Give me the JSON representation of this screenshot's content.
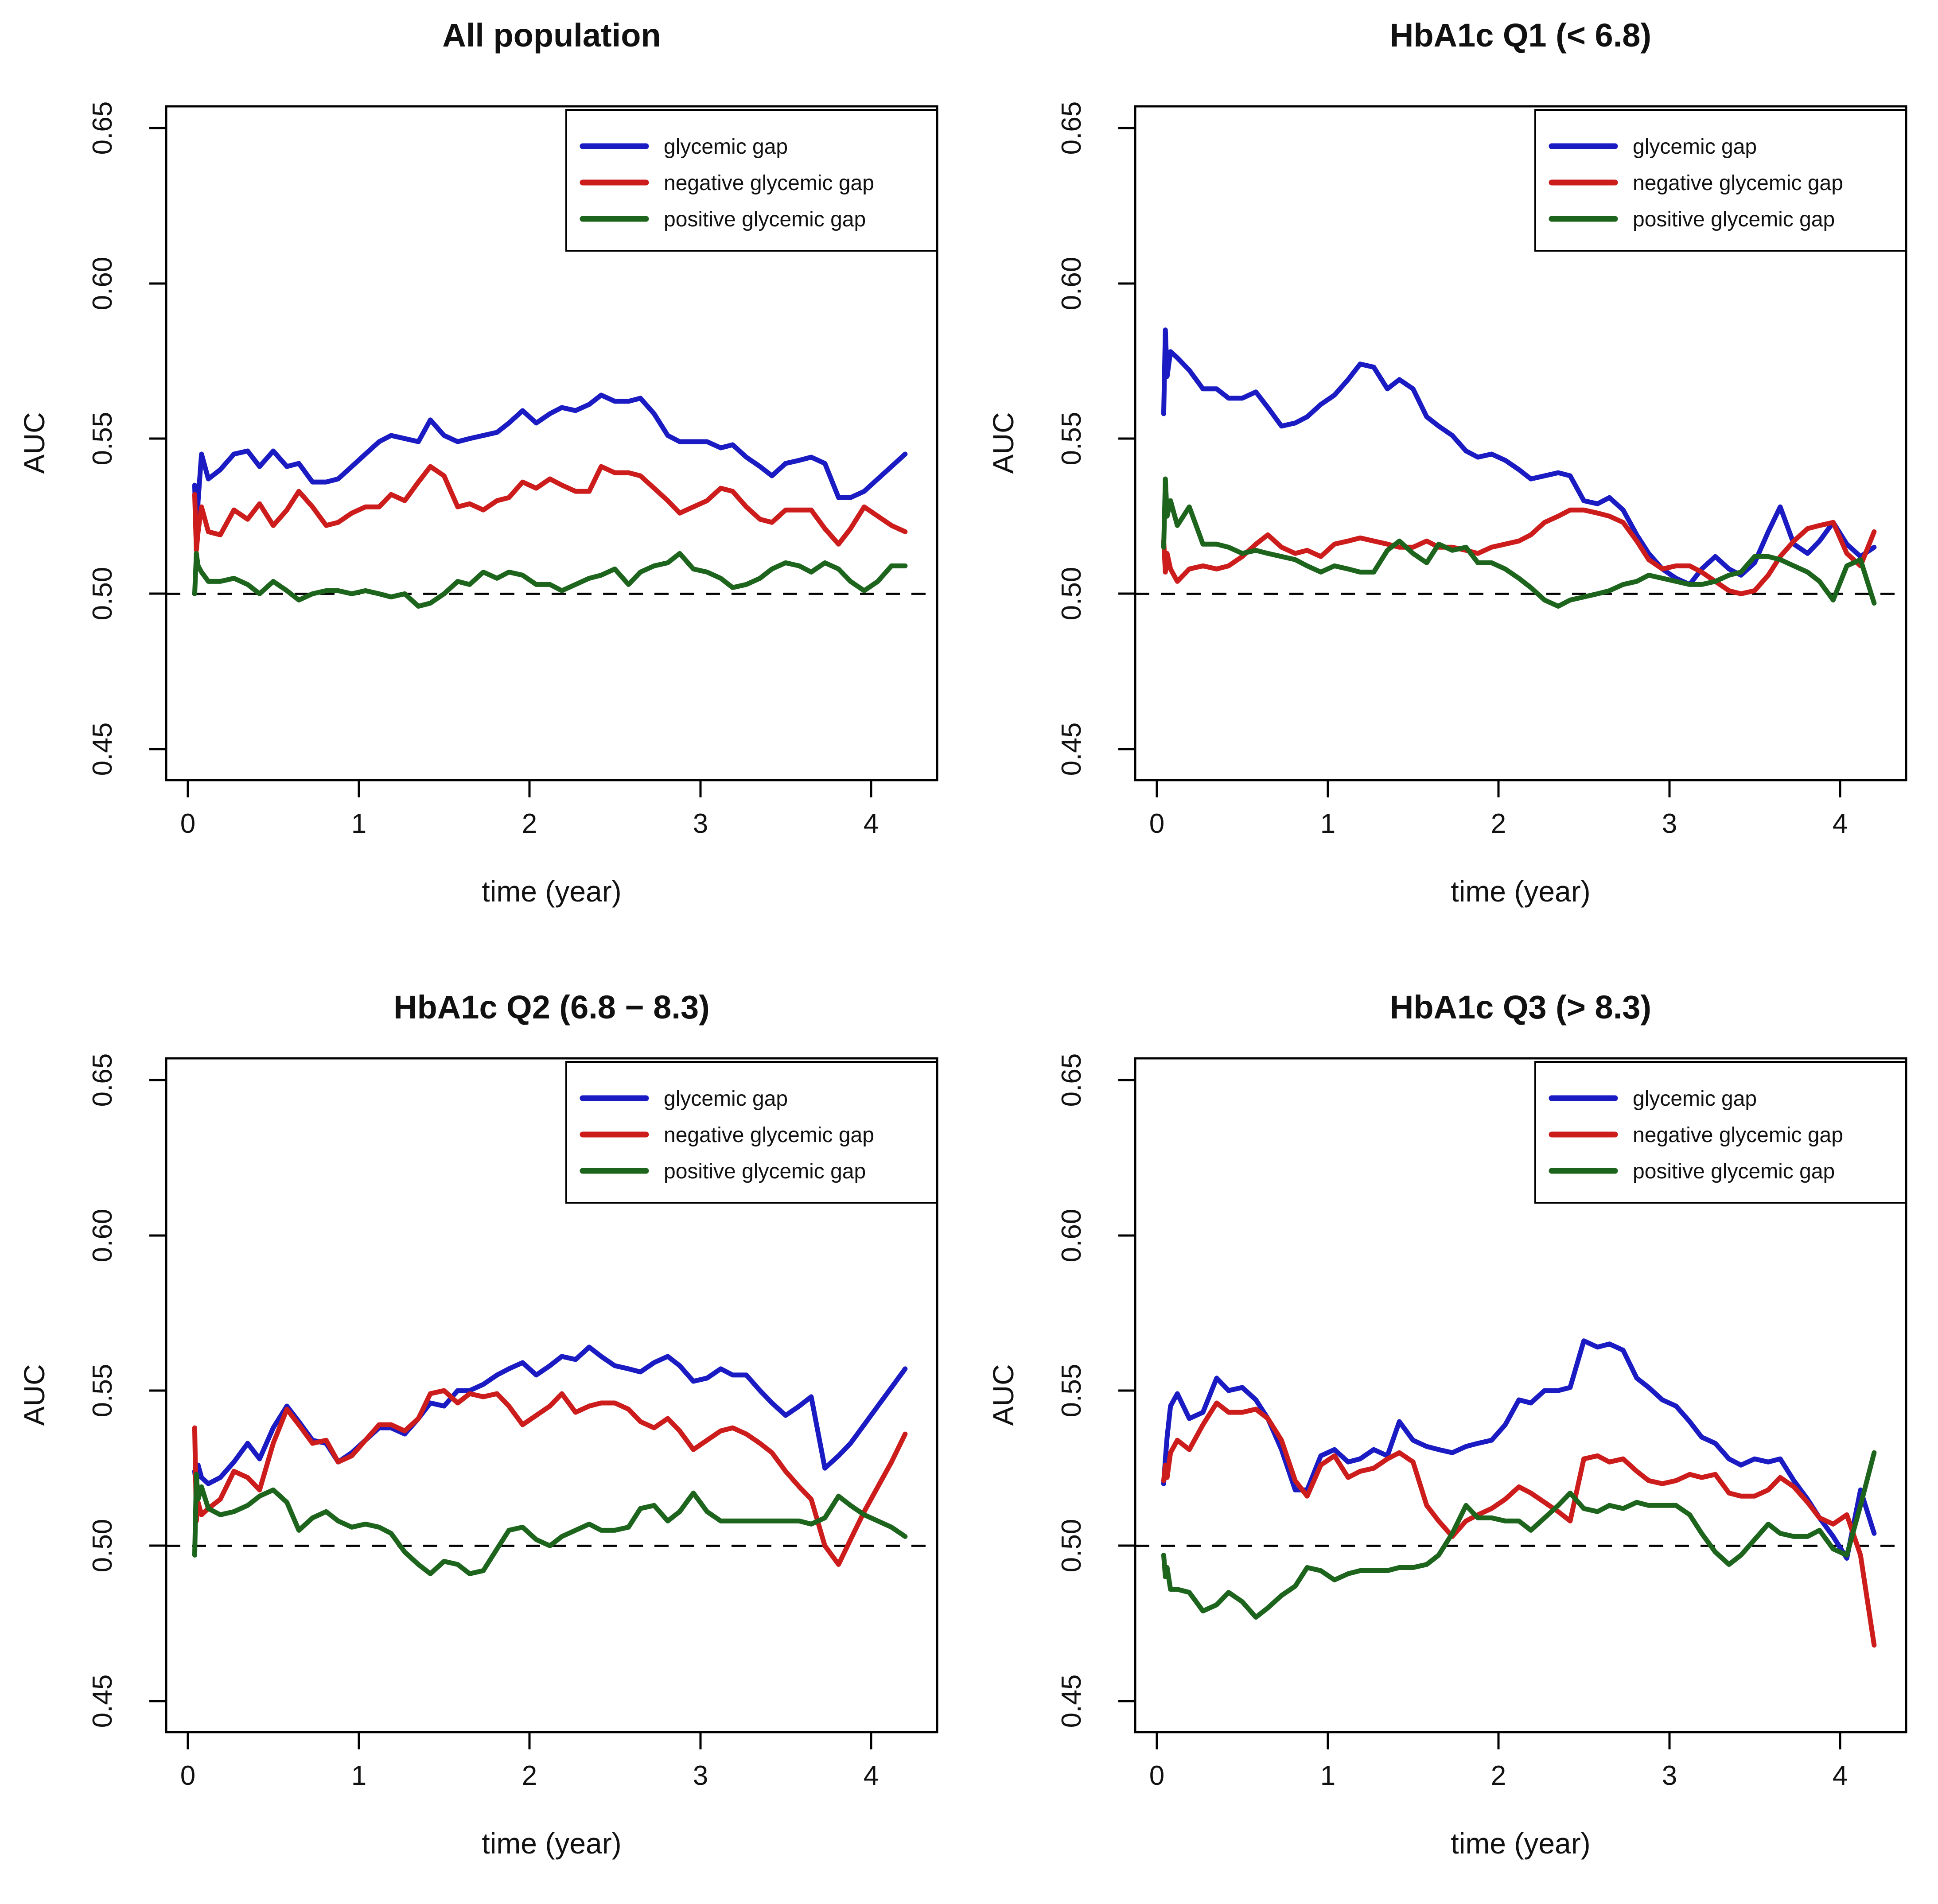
{
  "figure": {
    "background": "#ffffff",
    "text_color": "#111111",
    "accent_colors": {
      "blue": "#1b1bc3",
      "red": "#cd1c1c",
      "green": "#1d641d"
    }
  },
  "chart_data": {
    "type": "line",
    "layout": "2x2 grid of panels, shared axis style",
    "xlabel": "time (year)",
    "ylabel": "AUC",
    "xlim": [
      -0.127,
      4.387
    ],
    "ylim": [
      0.44,
      0.657
    ],
    "grid": "off",
    "reference_line": 0.5,
    "reference_line_style": "dashed black",
    "x_ticks": [
      {
        "label": "0",
        "value": 0
      },
      {
        "label": "1",
        "value": 1
      },
      {
        "label": "2",
        "value": 2
      },
      {
        "label": "3",
        "value": 3
      },
      {
        "label": "4",
        "value": 4
      }
    ],
    "y_ticks": [
      {
        "label": "0.45",
        "value": 0.45
      },
      {
        "label": "0.50",
        "value": 0.5
      },
      {
        "label": "0.55",
        "value": 0.55
      },
      {
        "label": "0.60",
        "value": 0.6
      },
      {
        "label": "0.65",
        "value": 0.65
      }
    ],
    "legend": {
      "position": "top-right",
      "entries": [
        {
          "label": "glycemic gap",
          "color": "#1b1bc3"
        },
        {
          "label": "negative glycemic gap",
          "color": "#cd1c1c"
        },
        {
          "label": "positive glycemic gap",
          "color": "#1d641d"
        }
      ]
    },
    "x_grid": [
      0.04,
      0.05,
      0.06,
      0.08,
      0.12,
      0.19,
      0.27,
      0.35,
      0.42,
      0.5,
      0.58,
      0.65,
      0.73,
      0.81,
      0.88,
      0.96,
      1.04,
      1.12,
      1.19,
      1.27,
      1.35,
      1.42,
      1.5,
      1.58,
      1.65,
      1.73,
      1.81,
      1.88,
      1.96,
      2.04,
      2.12,
      2.19,
      2.27,
      2.35,
      2.42,
      2.5,
      2.58,
      2.65,
      2.73,
      2.81,
      2.88,
      2.96,
      3.04,
      3.12,
      3.19,
      3.27,
      3.35,
      3.42,
      3.5,
      3.58,
      3.65,
      3.73,
      3.81,
      3.88,
      3.96,
      4.04,
      4.12,
      4.2
    ],
    "panels": [
      {
        "title": "All population",
        "series": [
          {
            "name": "glycemic gap",
            "color": "#1b1bc3",
            "values": [
              0.535,
              0.515,
              0.53,
              0.545,
              0.537,
              0.54,
              0.545,
              0.546,
              0.541,
              0.546,
              0.541,
              0.542,
              0.536,
              0.536,
              0.537,
              0.541,
              0.545,
              0.549,
              0.551,
              0.55,
              0.549,
              0.556,
              0.551,
              0.549,
              0.55,
              0.551,
              0.552,
              0.555,
              0.559,
              0.555,
              0.558,
              0.56,
              0.559,
              0.561,
              0.564,
              0.562,
              0.562,
              0.563,
              0.558,
              0.551,
              0.549,
              0.549,
              0.549,
              0.547,
              0.548,
              0.544,
              0.541,
              0.538,
              0.542,
              0.543,
              0.544,
              0.542,
              0.531,
              0.531,
              0.533,
              0.537,
              0.541,
              0.545
            ]
          },
          {
            "name": "negative glycemic gap",
            "color": "#cd1c1c",
            "values": [
              0.532,
              0.514,
              0.52,
              0.528,
              0.52,
              0.519,
              0.527,
              0.524,
              0.529,
              0.522,
              0.527,
              0.533,
              0.528,
              0.522,
              0.523,
              0.526,
              0.528,
              0.528,
              0.532,
              0.53,
              0.536,
              0.541,
              0.538,
              0.528,
              0.529,
              0.527,
              0.53,
              0.531,
              0.536,
              0.534,
              0.537,
              0.535,
              0.533,
              0.533,
              0.541,
              0.539,
              0.539,
              0.538,
              0.534,
              0.53,
              0.526,
              0.528,
              0.53,
              0.534,
              0.533,
              0.528,
              0.524,
              0.523,
              0.527,
              0.527,
              0.527,
              0.521,
              0.516,
              0.521,
              0.528,
              0.525,
              0.522,
              0.52
            ]
          },
          {
            "name": "positive glycemic gap",
            "color": "#1d641d",
            "values": [
              0.5,
              0.513,
              0.509,
              0.507,
              0.504,
              0.504,
              0.505,
              0.503,
              0.5,
              0.504,
              0.501,
              0.498,
              0.5,
              0.501,
              0.501,
              0.5,
              0.501,
              0.5,
              0.499,
              0.5,
              0.496,
              0.497,
              0.5,
              0.504,
              0.503,
              0.507,
              0.505,
              0.507,
              0.506,
              0.503,
              0.503,
              0.501,
              0.503,
              0.505,
              0.506,
              0.508,
              0.503,
              0.507,
              0.509,
              0.51,
              0.513,
              0.508,
              0.507,
              0.505,
              0.502,
              0.503,
              0.505,
              0.508,
              0.51,
              0.509,
              0.507,
              0.51,
              0.508,
              0.504,
              0.501,
              0.504,
              0.509,
              0.509
            ]
          }
        ]
      },
      {
        "title": "HbA1c Q1 (< 6.8)",
        "series": [
          {
            "name": "glycemic gap",
            "color": "#1b1bc3",
            "values": [
              0.558,
              0.585,
              0.57,
              0.578,
              0.576,
              0.572,
              0.566,
              0.566,
              0.563,
              0.563,
              0.565,
              0.56,
              0.554,
              0.555,
              0.557,
              0.561,
              0.564,
              0.569,
              0.574,
              0.573,
              0.566,
              0.569,
              0.566,
              0.557,
              0.554,
              0.551,
              0.546,
              0.544,
              0.545,
              0.543,
              0.54,
              0.537,
              0.538,
              0.539,
              0.538,
              0.53,
              0.529,
              0.531,
              0.527,
              0.519,
              0.513,
              0.508,
              0.505,
              0.503,
              0.508,
              0.512,
              0.508,
              0.506,
              0.51,
              0.52,
              0.528,
              0.516,
              0.513,
              0.517,
              0.523,
              0.516,
              0.512,
              0.515
            ]
          },
          {
            "name": "negative glycemic gap",
            "color": "#cd1c1c",
            "values": [
              0.517,
              0.507,
              0.513,
              0.508,
              0.504,
              0.508,
              0.509,
              0.508,
              0.509,
              0.512,
              0.516,
              0.519,
              0.515,
              0.513,
              0.514,
              0.512,
              0.516,
              0.517,
              0.518,
              0.517,
              0.516,
              0.515,
              0.515,
              0.517,
              0.515,
              0.515,
              0.514,
              0.513,
              0.515,
              0.516,
              0.517,
              0.519,
              0.523,
              0.525,
              0.527,
              0.527,
              0.526,
              0.525,
              0.523,
              0.517,
              0.511,
              0.508,
              0.509,
              0.509,
              0.507,
              0.504,
              0.501,
              0.5,
              0.501,
              0.506,
              0.512,
              0.517,
              0.521,
              0.522,
              0.523,
              0.513,
              0.509,
              0.52
            ]
          },
          {
            "name": "positive glycemic gap",
            "color": "#1d641d",
            "values": [
              0.515,
              0.537,
              0.525,
              0.53,
              0.522,
              0.528,
              0.516,
              0.516,
              0.515,
              0.513,
              0.514,
              0.513,
              0.512,
              0.511,
              0.509,
              0.507,
              0.509,
              0.508,
              0.507,
              0.507,
              0.514,
              0.517,
              0.513,
              0.51,
              0.516,
              0.514,
              0.515,
              0.51,
              0.51,
              0.508,
              0.505,
              0.502,
              0.498,
              0.496,
              0.498,
              0.499,
              0.5,
              0.501,
              0.503,
              0.504,
              0.506,
              0.505,
              0.504,
              0.503,
              0.503,
              0.504,
              0.506,
              0.507,
              0.512,
              0.512,
              0.511,
              0.509,
              0.507,
              0.504,
              0.498,
              0.509,
              0.511,
              0.497
            ]
          }
        ]
      },
      {
        "title": "HbA1c Q2 (6.8 − 8.3)",
        "series": [
          {
            "name": "glycemic gap",
            "color": "#1b1bc3",
            "values": [
              0.524,
              0.519,
              0.526,
              0.522,
              0.52,
              0.522,
              0.527,
              0.533,
              0.528,
              0.538,
              0.545,
              0.54,
              0.534,
              0.533,
              0.527,
              0.53,
              0.534,
              0.538,
              0.538,
              0.536,
              0.541,
              0.546,
              0.545,
              0.55,
              0.55,
              0.552,
              0.555,
              0.557,
              0.559,
              0.555,
              0.558,
              0.561,
              0.56,
              0.564,
              0.561,
              0.558,
              0.557,
              0.556,
              0.559,
              0.561,
              0.558,
              0.553,
              0.554,
              0.557,
              0.555,
              0.555,
              0.55,
              0.546,
              0.542,
              0.545,
              0.548,
              0.525,
              0.529,
              0.533,
              0.539,
              0.545,
              0.551,
              0.557
            ]
          },
          {
            "name": "negative glycemic gap",
            "color": "#cd1c1c",
            "values": [
              0.538,
              0.508,
              0.514,
              0.51,
              0.512,
              0.515,
              0.524,
              0.522,
              0.518,
              0.533,
              0.544,
              0.539,
              0.533,
              0.534,
              0.527,
              0.529,
              0.534,
              0.539,
              0.539,
              0.537,
              0.541,
              0.549,
              0.55,
              0.546,
              0.549,
              0.548,
              0.549,
              0.545,
              0.539,
              0.542,
              0.545,
              0.549,
              0.543,
              0.545,
              0.546,
              0.546,
              0.544,
              0.54,
              0.538,
              0.541,
              0.537,
              0.531,
              0.534,
              0.537,
              0.538,
              0.536,
              0.533,
              0.53,
              0.524,
              0.519,
              0.515,
              0.5,
              0.494,
              0.502,
              0.511,
              0.519,
              0.527,
              0.536
            ]
          },
          {
            "name": "positive glycemic gap",
            "color": "#1d641d",
            "values": [
              0.497,
              0.523,
              0.515,
              0.519,
              0.512,
              0.51,
              0.511,
              0.513,
              0.516,
              0.518,
              0.514,
              0.505,
              0.509,
              0.511,
              0.508,
              0.506,
              0.507,
              0.506,
              0.504,
              0.498,
              0.494,
              0.491,
              0.495,
              0.494,
              0.491,
              0.492,
              0.499,
              0.505,
              0.506,
              0.502,
              0.5,
              0.503,
              0.505,
              0.507,
              0.505,
              0.505,
              0.506,
              0.512,
              0.513,
              0.508,
              0.511,
              0.517,
              0.511,
              0.508,
              0.508,
              0.508,
              0.508,
              0.508,
              0.508,
              0.508,
              0.507,
              0.509,
              0.516,
              0.513,
              0.51,
              0.508,
              0.506,
              0.503
            ]
          }
        ]
      },
      {
        "title": "HbA1c Q3 (> 8.3)",
        "series": [
          {
            "name": "glycemic gap",
            "color": "#1b1bc3",
            "values": [
              0.52,
              0.528,
              0.535,
              0.545,
              0.549,
              0.541,
              0.543,
              0.554,
              0.55,
              0.551,
              0.547,
              0.541,
              0.531,
              0.518,
              0.518,
              0.529,
              0.531,
              0.527,
              0.528,
              0.531,
              0.529,
              0.54,
              0.534,
              0.532,
              0.531,
              0.53,
              0.532,
              0.533,
              0.534,
              0.539,
              0.547,
              0.546,
              0.55,
              0.55,
              0.551,
              0.566,
              0.564,
              0.565,
              0.563,
              0.554,
              0.551,
              0.547,
              0.545,
              0.54,
              0.535,
              0.533,
              0.528,
              0.526,
              0.528,
              0.527,
              0.528,
              0.521,
              0.515,
              0.509,
              0.503,
              0.496,
              0.518,
              0.504
            ]
          },
          {
            "name": "negative glycemic gap",
            "color": "#cd1c1c",
            "values": [
              0.521,
              0.526,
              0.522,
              0.53,
              0.534,
              0.531,
              0.539,
              0.546,
              0.543,
              0.543,
              0.544,
              0.541,
              0.534,
              0.521,
              0.516,
              0.526,
              0.529,
              0.522,
              0.524,
              0.525,
              0.528,
              0.53,
              0.527,
              0.513,
              0.508,
              0.503,
              0.508,
              0.51,
              0.512,
              0.515,
              0.519,
              0.517,
              0.514,
              0.511,
              0.508,
              0.528,
              0.529,
              0.527,
              0.528,
              0.524,
              0.521,
              0.52,
              0.521,
              0.523,
              0.522,
              0.523,
              0.517,
              0.516,
              0.516,
              0.518,
              0.522,
              0.519,
              0.514,
              0.509,
              0.507,
              0.51,
              0.497,
              0.468
            ]
          },
          {
            "name": "positive glycemic gap",
            "color": "#1d641d",
            "values": [
              0.497,
              0.49,
              0.493,
              0.486,
              0.486,
              0.485,
              0.479,
              0.481,
              0.485,
              0.482,
              0.477,
              0.48,
              0.484,
              0.487,
              0.493,
              0.492,
              0.489,
              0.491,
              0.492,
              0.492,
              0.492,
              0.493,
              0.493,
              0.494,
              0.497,
              0.504,
              0.513,
              0.509,
              0.509,
              0.508,
              0.508,
              0.505,
              0.509,
              0.513,
              0.517,
              0.512,
              0.511,
              0.513,
              0.512,
              0.514,
              0.513,
              0.513,
              0.513,
              0.51,
              0.504,
              0.498,
              0.494,
              0.497,
              0.502,
              0.507,
              0.504,
              0.503,
              0.503,
              0.505,
              0.499,
              0.497,
              0.513,
              0.53
            ]
          }
        ]
      }
    ]
  }
}
